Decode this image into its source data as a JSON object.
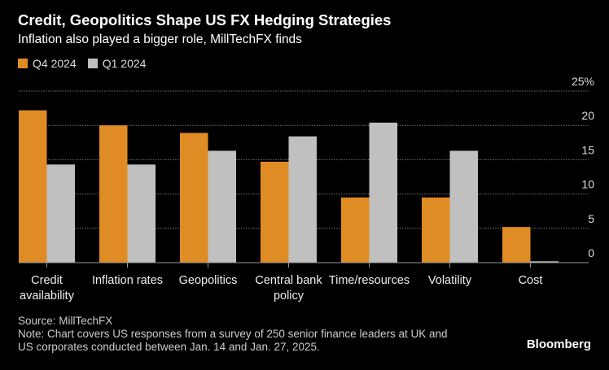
{
  "chart_data": {
    "type": "bar",
    "title": "Credit, Geopolitics Shape US FX Hedging Strategies",
    "subtitle": "Inflation also played a bigger role, MillTechFX finds",
    "categories": [
      "Credit availability",
      "Inflation rates",
      "Geopolitics",
      "Central bank policy",
      "Time/resources",
      "Volatility",
      "Cost"
    ],
    "category_lines": [
      [
        "Credit",
        "availability"
      ],
      [
        "Inflation rates"
      ],
      [
        "Geopolitics"
      ],
      [
        "Central bank",
        "policy"
      ],
      [
        "Time/resources"
      ],
      [
        "Volatility"
      ],
      [
        "Cost"
      ]
    ],
    "series": [
      {
        "name": "Q4 2024",
        "color": "#e08c24",
        "values": [
          22.2,
          20.0,
          18.9,
          14.7,
          9.5,
          9.5,
          5.2
        ]
      },
      {
        "name": "Q1 2024",
        "color": "#c0c0c0",
        "values": [
          14.3,
          14.3,
          16.3,
          18.4,
          20.4,
          16.3,
          0.2
        ]
      }
    ],
    "ylim": [
      0,
      25
    ],
    "yticks": [
      0,
      5,
      10,
      15,
      20,
      25
    ],
    "ytick_labels": [
      "0",
      "5",
      "10",
      "15",
      "20",
      "25%"
    ],
    "yaxis_position": "right",
    "grid": true,
    "legend_position": "top-left"
  },
  "footer": {
    "source": "Source: MillTechFX",
    "note_line1": "Note: Chart covers US responses from a survey of 250 senior finance leaders at UK and",
    "note_line2": "US corporates conducted between Jan. 14 and Jan. 27, 2025.",
    "brand": "Bloomberg"
  }
}
